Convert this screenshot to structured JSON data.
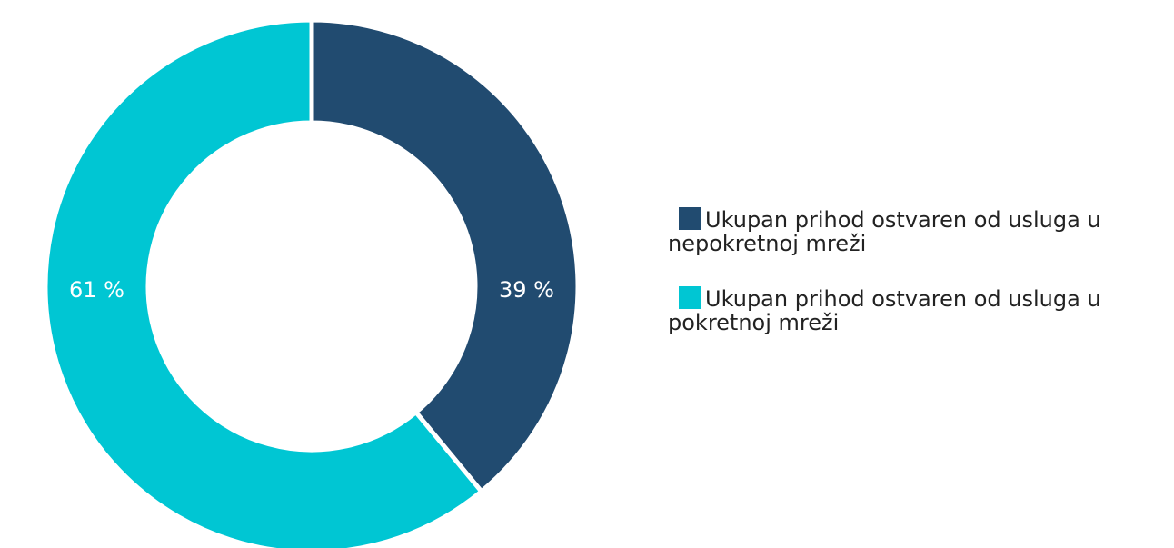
{
  "chart_data": {
    "type": "pie",
    "donut": true,
    "categories": [
      "Ukupan prihod ostvaren od usluga u nepokretnoj mreži",
      "Ukupan prihod ostvaren od usluga u pokretnoj mreži"
    ],
    "values": [
      39,
      61
    ],
    "value_labels": [
      "39 %",
      "61 %"
    ],
    "colors": [
      "#214b70",
      "#00c6d3"
    ],
    "legend": "right"
  }
}
